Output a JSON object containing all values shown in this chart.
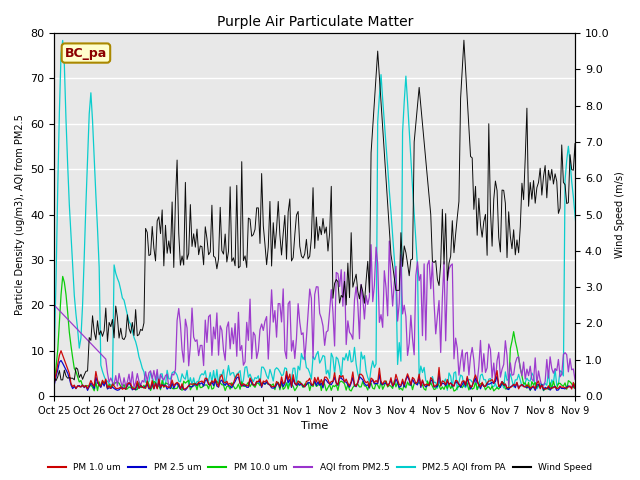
{
  "title": "Purple Air Particulate Matter",
  "ylabel_left": "Particle Density (ug/m3), AQI from PM2.5",
  "ylabel_right": "Wind Speed (m/s)",
  "xlabel": "Time",
  "ylim_left": [
    0,
    80
  ],
  "ylim_right": [
    0,
    10
  ],
  "annotation": "BC_pa",
  "x_tick_labels": [
    "Oct 25",
    "Oct 26",
    "Oct 27",
    "Oct 28",
    "Oct 29",
    "Oct 30",
    "Oct 31",
    "Nov 1",
    "Nov 2",
    "Nov 3",
    "Nov 4",
    "Nov 5",
    "Nov 6",
    "Nov 7",
    "Nov 8",
    "Nov 9"
  ],
  "legend_entries": [
    {
      "label": "PM 1.0 um",
      "color": "#cc0000"
    },
    {
      "label": "PM 2.5 um",
      "color": "#0000cc"
    },
    {
      "label": "PM 10.0 um",
      "color": "#00cc00"
    },
    {
      "label": "AQI from PM2.5",
      "color": "#9933cc"
    },
    {
      "label": "PM2.5 AQI from PA",
      "color": "#00cccc"
    },
    {
      "label": "Wind Speed",
      "color": "#000000"
    }
  ],
  "background_color": "#ffffff",
  "plot_bg_color": "#e8e8e8",
  "grid_color": "#ffffff",
  "num_points": 336,
  "figsize": [
    6.4,
    4.8
  ],
  "dpi": 100
}
